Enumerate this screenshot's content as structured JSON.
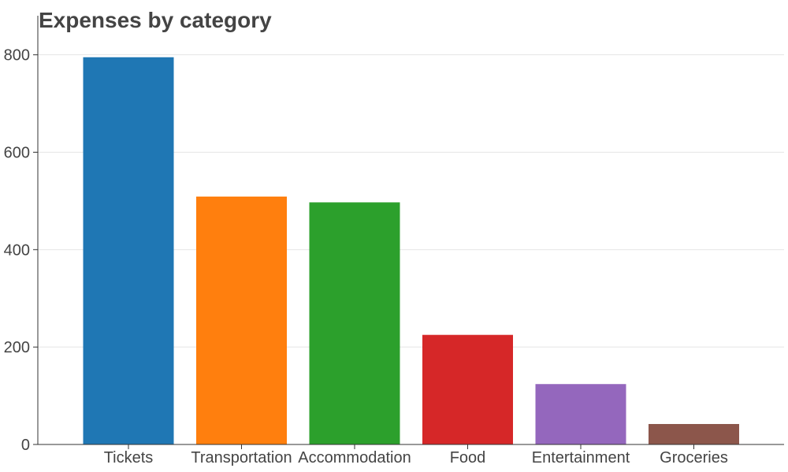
{
  "chart_data": {
    "type": "bar",
    "title": "Expenses by category",
    "xlabel": "",
    "ylabel": "",
    "categories": [
      "Tickets",
      "Transportation",
      "Accommodation",
      "Food",
      "Entertainment",
      "Groceries"
    ],
    "values": [
      795,
      509,
      497,
      225,
      124,
      42
    ],
    "colors": [
      "#1f77b4",
      "#ff7f0e",
      "#2ca02c",
      "#d62728",
      "#9467bd",
      "#8c564b"
    ],
    "ylim": [
      0,
      835
    ],
    "yticks": [
      0,
      200,
      400,
      600,
      800
    ],
    "grid": true,
    "legend": "none"
  }
}
